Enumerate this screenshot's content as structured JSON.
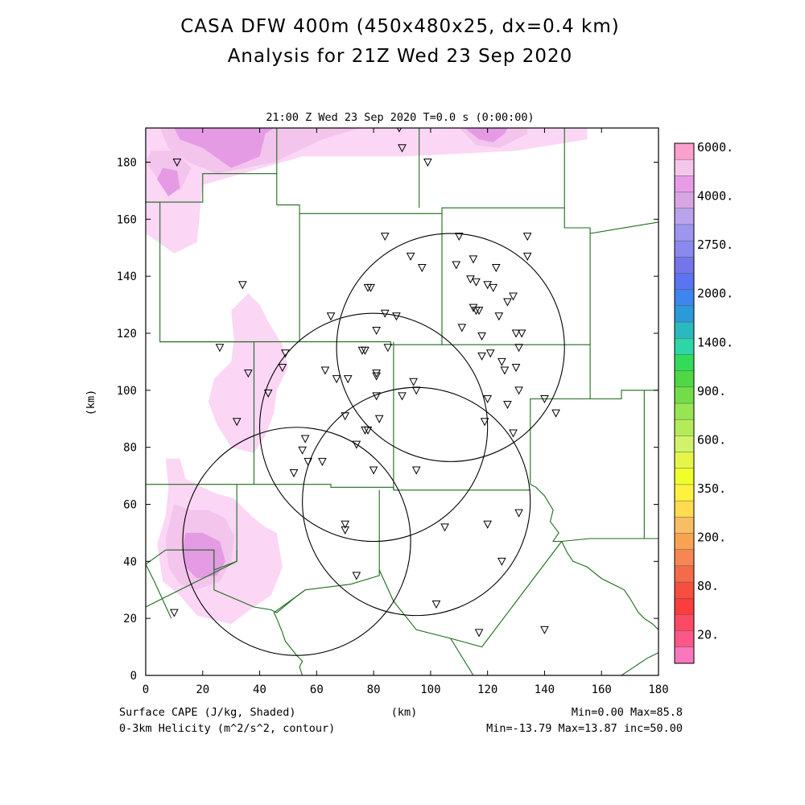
{
  "title_line1": "CASA DFW 400m (450x480x25, dx=0.4 km)",
  "title_line2": "Analysis for 21Z Wed 23 Sep 2020",
  "plot_subtitle": "21:00 Z Wed 23 Sep 2020    T=0.0 s (0:00:00)",
  "x_axis_label": "(km)",
  "y_axis_label": "(km)",
  "field1_label": "Surface CAPE (J/kg, Shaded)",
  "field1_stats": "Min=0.00 Max=85.8",
  "field2_label": "0-3km Helicity (m^2/s^2, contour)",
  "field2_stats": "Min=-13.79 Max=13.87 inc=50.00",
  "x_ticks": [
    0,
    20,
    40,
    60,
    80,
    100,
    120,
    140,
    160,
    180
  ],
  "y_ticks": [
    0,
    20,
    40,
    60,
    80,
    100,
    120,
    140,
    160,
    180
  ],
  "domain_km": {
    "x": [
      0,
      180
    ],
    "y": [
      0,
      192
    ]
  },
  "colorbar_labels": [
    "6000.",
    "4000.",
    "2750.",
    "2000.",
    "1400.",
    "900.",
    "600.",
    "350.",
    "200.",
    "80.",
    "20."
  ],
  "colorbar_colors": [
    "#fca0ce",
    "#f4c7ea",
    "#e89ce8",
    "#d7a6e3",
    "#b9a3ec",
    "#9d96ef",
    "#8989ef",
    "#7575ea",
    "#5a74f2",
    "#3c86ee",
    "#2b9ad9",
    "#2bb9c0",
    "#2cd6a6",
    "#34db5b",
    "#4fd744",
    "#73dd49",
    "#97e552",
    "#b4ec59",
    "#d0f36a",
    "#e6f649",
    "#f0ff2a",
    "#fff23f",
    "#ffdb4f",
    "#f9be63",
    "#f8a352",
    "#f78653",
    "#f46b4a",
    "#f64f40",
    "#fb3d3d",
    "#fc4a66",
    "#fd5689",
    "#f977bd"
  ],
  "colors": {
    "boundaries": "#1e6b1e",
    "radar_rings": "#000000",
    "frame": "#000000"
  },
  "map_data": {
    "radars": [
      {
        "x": 107,
        "y": 115,
        "r": 40
      },
      {
        "x": 80,
        "y": 87,
        "r": 40
      },
      {
        "x": 95,
        "y": 61,
        "r": 40
      },
      {
        "x": 53,
        "y": 47,
        "r": 40
      }
    ],
    "stations": [
      [
        11,
        180
      ],
      [
        89,
        192
      ],
      [
        90,
        185
      ],
      [
        99,
        180
      ],
      [
        34,
        137
      ],
      [
        26,
        115
      ],
      [
        36,
        106
      ],
      [
        49,
        113
      ],
      [
        48,
        108
      ],
      [
        43,
        99
      ],
      [
        32,
        89
      ],
      [
        84,
        154
      ],
      [
        110,
        154
      ],
      [
        134,
        154
      ],
      [
        93,
        147
      ],
      [
        115,
        146
      ],
      [
        134,
        147
      ],
      [
        97,
        143
      ],
      [
        109,
        144
      ],
      [
        123,
        143
      ],
      [
        78,
        136
      ],
      [
        79,
        136
      ],
      [
        114,
        139
      ],
      [
        116,
        138
      ],
      [
        120,
        137
      ],
      [
        122,
        136
      ],
      [
        129,
        133
      ],
      [
        127,
        131
      ],
      [
        65,
        126
      ],
      [
        84,
        127
      ],
      [
        88,
        126
      ],
      [
        115,
        129
      ],
      [
        116,
        128
      ],
      [
        117,
        128
      ],
      [
        124,
        126
      ],
      [
        81,
        121
      ],
      [
        111,
        122
      ],
      [
        118,
        119
      ],
      [
        130,
        120
      ],
      [
        132,
        120
      ],
      [
        85,
        115
      ],
      [
        76,
        114
      ],
      [
        77,
        114
      ],
      [
        131,
        115
      ],
      [
        121,
        113
      ],
      [
        118,
        112
      ],
      [
        125,
        110
      ],
      [
        126,
        107
      ],
      [
        130,
        108
      ],
      [
        63,
        107
      ],
      [
        67,
        104
      ],
      [
        71,
        104
      ],
      [
        81,
        106
      ],
      [
        81,
        105
      ],
      [
        94,
        103
      ],
      [
        95,
        100
      ],
      [
        81,
        98
      ],
      [
        90,
        98
      ],
      [
        131,
        100
      ],
      [
        120,
        97
      ],
      [
        140,
        97
      ],
      [
        144,
        92
      ],
      [
        70,
        91
      ],
      [
        82,
        90
      ],
      [
        119,
        89
      ],
      [
        127,
        95
      ],
      [
        129,
        85
      ],
      [
        78,
        86
      ],
      [
        77,
        86
      ],
      [
        56,
        83
      ],
      [
        74,
        81
      ],
      [
        55,
        79
      ],
      [
        57,
        75
      ],
      [
        62,
        75
      ],
      [
        80,
        72
      ],
      [
        95,
        72
      ],
      [
        52,
        71
      ],
      [
        131,
        57
      ],
      [
        120,
        53
      ],
      [
        70,
        53
      ],
      [
        70,
        51
      ],
      [
        105,
        52
      ],
      [
        125,
        40
      ],
      [
        74,
        35
      ],
      [
        102,
        25
      ],
      [
        10,
        22
      ],
      [
        117,
        15
      ],
      [
        140,
        16
      ]
    ],
    "cape_regions": [
      {
        "level": 1,
        "pts": [
          [
            0,
            192
          ],
          [
            0,
            155
          ],
          [
            10,
            148
          ],
          [
            18,
            152
          ],
          [
            20,
            172
          ],
          [
            55,
            182
          ],
          [
            90,
            182
          ],
          [
            130,
            184
          ],
          [
            155,
            188
          ],
          [
            155,
            192
          ]
        ]
      },
      {
        "level": 2,
        "pts": [
          [
            5,
            192
          ],
          [
            8,
            185
          ],
          [
            15,
            180
          ],
          [
            25,
            176
          ],
          [
            45,
            180
          ],
          [
            62,
            188
          ],
          [
            75,
            192
          ]
        ]
      },
      {
        "level": 3,
        "pts": [
          [
            10,
            192
          ],
          [
            12,
            188
          ],
          [
            20,
            185
          ],
          [
            30,
            178
          ],
          [
            40,
            182
          ],
          [
            42,
            190
          ],
          [
            45,
            192
          ]
        ]
      },
      {
        "level": 2,
        "pts": [
          [
            0,
            180
          ],
          [
            6,
            172
          ],
          [
            12,
            170
          ],
          [
            16,
            178
          ],
          [
            10,
            184
          ],
          [
            2,
            184
          ]
        ]
      },
      {
        "level": 3,
        "pts": [
          [
            4,
            174
          ],
          [
            8,
            168
          ],
          [
            12,
            171
          ],
          [
            11,
            177
          ],
          [
            6,
            178
          ]
        ]
      },
      {
        "level": 1,
        "pts": [
          [
            30,
            128
          ],
          [
            36,
            134
          ],
          [
            40,
            130
          ],
          [
            43,
            124
          ],
          [
            48,
            116
          ],
          [
            50,
            108
          ],
          [
            46,
            100
          ],
          [
            45,
            92
          ],
          [
            42,
            84
          ],
          [
            38,
            78
          ],
          [
            30,
            80
          ],
          [
            25,
            88
          ],
          [
            22,
            96
          ],
          [
            24,
            104
          ],
          [
            30,
            110
          ],
          [
            31,
            118
          ]
        ]
      },
      {
        "level": 1,
        "pts": [
          [
            7,
            76
          ],
          [
            12,
            76
          ],
          [
            14,
            69
          ],
          [
            24,
            64
          ],
          [
            31,
            62
          ],
          [
            37,
            56
          ],
          [
            42,
            52
          ],
          [
            46,
            50
          ],
          [
            48,
            38
          ],
          [
            44,
            28
          ],
          [
            38,
            24
          ],
          [
            30,
            18
          ],
          [
            18,
            21
          ],
          [
            12,
            28
          ],
          [
            6,
            33
          ],
          [
            4,
            46
          ],
          [
            7,
            56
          ],
          [
            8,
            66
          ]
        ]
      },
      {
        "level": 2,
        "pts": [
          [
            10,
            60
          ],
          [
            16,
            58
          ],
          [
            22,
            58
          ],
          [
            28,
            55
          ],
          [
            31,
            49
          ],
          [
            30,
            40
          ],
          [
            26,
            33
          ],
          [
            18,
            30
          ],
          [
            12,
            32
          ],
          [
            8,
            38
          ],
          [
            7,
            48
          ]
        ]
      },
      {
        "level": 3,
        "pts": [
          [
            14,
            50
          ],
          [
            20,
            50
          ],
          [
            26,
            47
          ],
          [
            28,
            40
          ],
          [
            25,
            35
          ],
          [
            18,
            34
          ],
          [
            14,
            38
          ],
          [
            13,
            45
          ]
        ]
      },
      {
        "level": 2,
        "pts": [
          [
            110,
            192
          ],
          [
            116,
            186
          ],
          [
            124,
            185
          ],
          [
            130,
            188
          ],
          [
            134,
            190
          ],
          [
            134,
            192
          ]
        ]
      },
      {
        "level": 3,
        "pts": [
          [
            112,
            192
          ],
          [
            117,
            188
          ],
          [
            122,
            187
          ],
          [
            126,
            190
          ],
          [
            127,
            192
          ]
        ]
      }
    ],
    "boundaries": [
      [
        [
          0,
          166
        ],
        [
          20,
          166
        ],
        [
          20,
          176
        ],
        [
          46,
          176
        ],
        [
          46,
          165
        ]
      ],
      [
        [
          46,
          165
        ],
        [
          54,
          165
        ],
        [
          54,
          162
        ],
        [
          104,
          162
        ],
        [
          104,
          164
        ],
        [
          147,
          164
        ]
      ],
      [
        [
          46,
          192
        ],
        [
          46,
          176
        ]
      ],
      [
        [
          96,
          192
        ],
        [
          96,
          164
        ]
      ],
      [
        [
          147,
          192
        ],
        [
          147,
          164
        ]
      ],
      [
        [
          147,
          164
        ],
        [
          147,
          157
        ],
        [
          156,
          157
        ],
        [
          156,
          155
        ],
        [
          180,
          159
        ]
      ],
      [
        [
          0,
          166
        ],
        [
          5,
          166
        ],
        [
          5,
          117
        ],
        [
          38,
          117
        ],
        [
          38,
          67
        ],
        [
          0,
          67
        ]
      ],
      [
        [
          54,
          162
        ],
        [
          54,
          117
        ]
      ],
      [
        [
          5,
          117
        ],
        [
          38,
          117
        ],
        [
          54,
          117
        ],
        [
          86,
          117
        ],
        [
          86,
          116
        ],
        [
          104,
          116
        ],
        [
          156,
          116
        ]
      ],
      [
        [
          104,
          162
        ],
        [
          104,
          116
        ]
      ],
      [
        [
          156,
          155
        ],
        [
          156,
          116
        ]
      ],
      [
        [
          156,
          116
        ],
        [
          156,
          97
        ],
        [
          167,
          97
        ],
        [
          167,
          100
        ],
        [
          180,
          100
        ]
      ],
      [
        [
          156,
          97
        ],
        [
          135,
          97
        ],
        [
          135,
          67
        ]
      ],
      [
        [
          38,
          67
        ],
        [
          65,
          67
        ],
        [
          65,
          66
        ],
        [
          87,
          66
        ],
        [
          87,
          65
        ],
        [
          135,
          65
        ]
      ],
      [
        [
          87,
          117
        ],
        [
          87,
          65
        ]
      ],
      [
        [
          135,
          67
        ],
        [
          137,
          66
        ],
        [
          140,
          63
        ],
        [
          143,
          58
        ],
        [
          142,
          54
        ],
        [
          145,
          50
        ],
        [
          143,
          47
        ],
        [
          146,
          47
        ],
        [
          156,
          48
        ],
        [
          175,
          48
        ],
        [
          180,
          48
        ]
      ],
      [
        [
          175,
          48
        ],
        [
          175,
          100
        ]
      ],
      [
        [
          146,
          47
        ],
        [
          148,
          43
        ],
        [
          150,
          40
        ],
        [
          155,
          38
        ],
        [
          160,
          34
        ],
        [
          164,
          32
        ],
        [
          168,
          30
        ],
        [
          170,
          27
        ],
        [
          173,
          22
        ],
        [
          175,
          20
        ],
        [
          178,
          18
        ],
        [
          180,
          16
        ]
      ],
      [
        [
          0,
          24
        ],
        [
          10,
          29
        ],
        [
          32,
          40
        ],
        [
          32,
          67
        ]
      ],
      [
        [
          0,
          39
        ],
        [
          7,
          44
        ],
        [
          24,
          44
        ],
        [
          24,
          40
        ],
        [
          24,
          37
        ],
        [
          32,
          40
        ],
        [
          32,
          44
        ]
      ],
      [
        [
          0,
          39
        ],
        [
          3,
          33
        ],
        [
          9,
          20
        ]
      ],
      [
        [
          24,
          44
        ],
        [
          24,
          30
        ],
        [
          38,
          24
        ],
        [
          44,
          23
        ],
        [
          46,
          22
        ],
        [
          52,
          27
        ],
        [
          56,
          30
        ],
        [
          72,
          32
        ],
        [
          82,
          35
        ],
        [
          82,
          37
        ],
        [
          87,
          26
        ],
        [
          95,
          16
        ],
        [
          107,
          13
        ],
        [
          118,
          10
        ],
        [
          146,
          47
        ]
      ],
      [
        [
          82,
          37
        ],
        [
          82,
          65
        ]
      ],
      [
        [
          56,
          30
        ],
        [
          45,
          22
        ],
        [
          46,
          20
        ],
        [
          48,
          15
        ],
        [
          49,
          12
        ],
        [
          53,
          7
        ],
        [
          55,
          5
        ],
        [
          54,
          3
        ],
        [
          55,
          0
        ]
      ],
      [
        [
          107,
          13
        ],
        [
          115,
          0
        ]
      ],
      [
        [
          167,
          0
        ],
        [
          170,
          2
        ],
        [
          173,
          4
        ],
        [
          176,
          6
        ],
        [
          180,
          8
        ]
      ]
    ]
  }
}
